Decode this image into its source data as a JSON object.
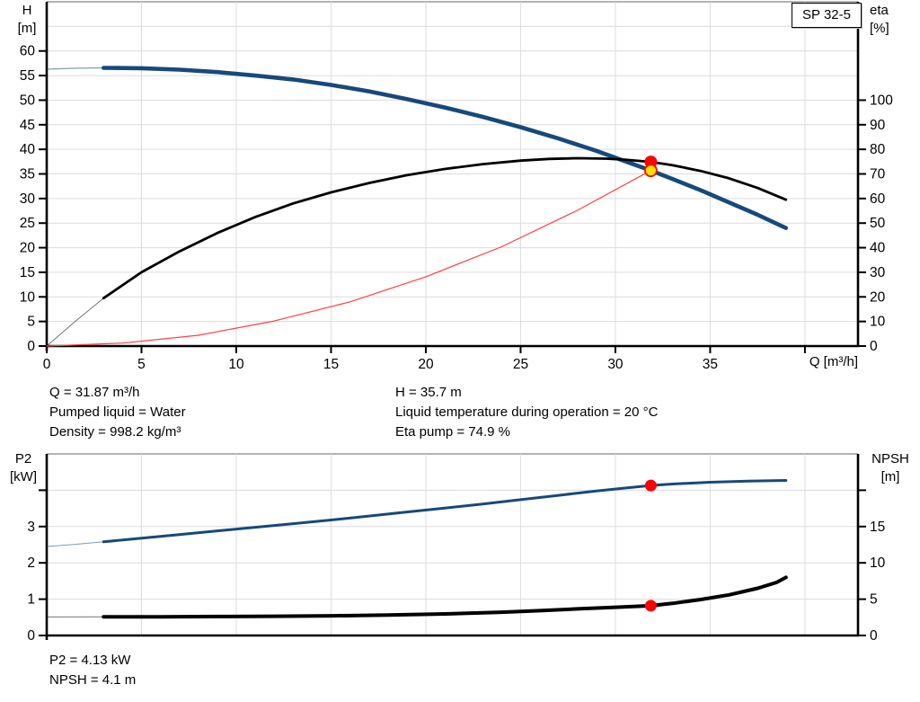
{
  "pump": {
    "model": "SP 32-5"
  },
  "summary_top": {
    "col1": [
      "Q = 31.87 m³/h",
      "Pumped liquid = Water",
      "Density = 998.2 kg/m³"
    ],
    "col2": [
      "H = 35.7 m",
      "Liquid temperature during operation = 20 °C",
      "Eta pump = 74.9 %"
    ]
  },
  "summary_bottom": {
    "lines": [
      "P2 = 4.13 kW",
      "NPSH = 4.1 m"
    ]
  },
  "colors": {
    "curve_blue": "#17497A",
    "curve_black": "#000000",
    "system_red": "#FF4040",
    "marker_red": "#FF0000",
    "marker_yellow": "#FFE000",
    "grid": "#DCDCDC",
    "border_gray": "#999999"
  },
  "chart_data": [
    {
      "type": "line",
      "id": "qh-eta",
      "badge": "SP 32-5",
      "xlabel": "Q [m³/h]",
      "ylabel_left": [
        "H",
        "[m]"
      ],
      "ylabel_right": [
        "eta",
        "[%]"
      ],
      "xlim": [
        0,
        42.8
      ],
      "ylim_left": [
        0,
        70
      ],
      "ylim_right": [
        0,
        140
      ],
      "grid": true,
      "x_ticks": [
        {
          "v": 0,
          "label": "0"
        },
        {
          "v": 5,
          "label": "5"
        },
        {
          "v": 10,
          "label": "10"
        },
        {
          "v": 15,
          "label": "15"
        },
        {
          "v": 20,
          "label": "20"
        },
        {
          "v": 25,
          "label": "25"
        },
        {
          "v": 30,
          "label": "30"
        },
        {
          "v": 35,
          "label": "35"
        },
        {
          "v": 40,
          "label": ""
        }
      ],
      "left_ticks": [
        {
          "v": 0,
          "label": "0"
        },
        {
          "v": 5,
          "label": "5"
        },
        {
          "v": 10,
          "label": "10"
        },
        {
          "v": 15,
          "label": "15"
        },
        {
          "v": 20,
          "label": "20"
        },
        {
          "v": 25,
          "label": "25"
        },
        {
          "v": 30,
          "label": "30"
        },
        {
          "v": 35,
          "label": "35"
        },
        {
          "v": 40,
          "label": "40"
        },
        {
          "v": 45,
          "label": "45"
        },
        {
          "v": 50,
          "label": "50"
        },
        {
          "v": 55,
          "label": "55"
        },
        {
          "v": 60,
          "label": "60"
        }
      ],
      "right_ticks": [
        {
          "v": 0,
          "label": "0"
        },
        {
          "v": 10,
          "label": "10"
        },
        {
          "v": 20,
          "label": "20"
        },
        {
          "v": 30,
          "label": "30"
        },
        {
          "v": 40,
          "label": "40"
        },
        {
          "v": 50,
          "label": "50"
        },
        {
          "v": 60,
          "label": "60"
        },
        {
          "v": 70,
          "label": "70"
        },
        {
          "v": 80,
          "label": "80"
        },
        {
          "v": 90,
          "label": "90"
        },
        {
          "v": 100,
          "label": "100"
        }
      ],
      "grid_x": [
        5,
        10,
        15,
        20,
        25,
        30,
        35,
        40
      ],
      "grid_left": [
        5,
        10,
        15,
        20,
        25,
        30,
        35,
        40,
        45,
        50,
        55,
        60,
        65
      ],
      "series": [
        {
          "name": "pump-head-curve",
          "axis": "left",
          "color": "#17497A",
          "thin_until": 3,
          "width": 4.6,
          "thin_width": 1.2,
          "points": [
            [
              0,
              56.3
            ],
            [
              1.5,
              56.5
            ],
            [
              3,
              56.57
            ],
            [
              5,
              56.5
            ],
            [
              7,
              56.2
            ],
            [
              9,
              55.7
            ],
            [
              11,
              55.0
            ],
            [
              13,
              54.2
            ],
            [
              15,
              53.1
            ],
            [
              17,
              51.8
            ],
            [
              19,
              50.2
            ],
            [
              21,
              48.5
            ],
            [
              23,
              46.6
            ],
            [
              25,
              44.5
            ],
            [
              27,
              42.2
            ],
            [
              29,
              39.7
            ],
            [
              30.5,
              37.6
            ],
            [
              31.87,
              35.7
            ],
            [
              33,
              34.0
            ],
            [
              34.5,
              31.7
            ],
            [
              36,
              29.2
            ],
            [
              37.5,
              26.7
            ],
            [
              39,
              24.0
            ]
          ]
        },
        {
          "name": "pump-efficiency-curve",
          "axis": "right",
          "color": "#000000",
          "thin_until": 3,
          "width": 2.8,
          "thin_width": 1,
          "points": [
            [
              0,
              0
            ],
            [
              1.5,
              10
            ],
            [
              3,
              19.5
            ],
            [
              5,
              30
            ],
            [
              7,
              38.5
            ],
            [
              9,
              46
            ],
            [
              11,
              52.5
            ],
            [
              13,
              58
            ],
            [
              15,
              62.5
            ],
            [
              17,
              66.3
            ],
            [
              19,
              69.5
            ],
            [
              21,
              72
            ],
            [
              23,
              74
            ],
            [
              25,
              75.4
            ],
            [
              26.5,
              76.1
            ],
            [
              28,
              76.4
            ],
            [
              29.5,
              76.2
            ],
            [
              30.5,
              75.8
            ],
            [
              31.87,
              74.9
            ],
            [
              33,
              73.6
            ],
            [
              34.5,
              71.2
            ],
            [
              36,
              68.2
            ],
            [
              37.5,
              64.3
            ],
            [
              39,
              59.5
            ]
          ]
        },
        {
          "name": "system-curve",
          "axis": "left",
          "color": "#FF4040",
          "thin_until": 0,
          "width": 1.2,
          "thin_width": 1.2,
          "points": [
            [
              0,
              0
            ],
            [
              4,
              0.6
            ],
            [
              8,
              2.2
            ],
            [
              12,
              5.1
            ],
            [
              16,
              9.0
            ],
            [
              20,
              14.1
            ],
            [
              24,
              20.2
            ],
            [
              28,
              27.6
            ],
            [
              31.87,
              35.7
            ]
          ]
        }
      ],
      "markers": [
        {
          "name": "duty-point-eta",
          "x": 31.87,
          "y": 74.9,
          "axis": "right",
          "fill": "#FF0000",
          "stroke": "none",
          "r": 7
        },
        {
          "name": "duty-point-head",
          "x": 31.87,
          "y": 35.7,
          "axis": "left",
          "fill": "#FFE000",
          "stroke": "#FF0000",
          "r": 6.5
        }
      ]
    },
    {
      "type": "line",
      "id": "p2-npsh",
      "xlabel": "",
      "ylabel_left": [
        "P2",
        "[kW]"
      ],
      "ylabel_right": [
        "NPSH",
        "[m]"
      ],
      "xlim": [
        0,
        42.8
      ],
      "ylim_left": [
        0,
        5
      ],
      "ylim_right": [
        0,
        25
      ],
      "grid": true,
      "x_ticks": [],
      "left_ticks": [
        {
          "v": 0,
          "label": "0"
        },
        {
          "v": 1,
          "label": "1"
        },
        {
          "v": 2,
          "label": "2"
        },
        {
          "v": 3,
          "label": "3"
        },
        {
          "v": 4,
          "label": ""
        }
      ],
      "right_ticks": [
        {
          "v": 0,
          "label": "0"
        },
        {
          "v": 5,
          "label": "5"
        },
        {
          "v": 10,
          "label": "10"
        },
        {
          "v": 15,
          "label": "15"
        },
        {
          "v": 20,
          "label": ""
        }
      ],
      "grid_x": [
        5,
        10,
        15,
        20,
        25,
        30,
        35,
        40
      ],
      "grid_left": [
        1,
        2,
        3,
        4
      ],
      "series": [
        {
          "name": "p2-power-curve",
          "axis": "left",
          "color": "#17497A",
          "thin_until": 3,
          "width": 3,
          "thin_width": 1,
          "points": [
            [
              0,
              2.45
            ],
            [
              1.5,
              2.51
            ],
            [
              3,
              2.58
            ],
            [
              5,
              2.68
            ],
            [
              7,
              2.78
            ],
            [
              9,
              2.88
            ],
            [
              11,
              2.98
            ],
            [
              13,
              3.08
            ],
            [
              15,
              3.18
            ],
            [
              17,
              3.29
            ],
            [
              19,
              3.4
            ],
            [
              21,
              3.51
            ],
            [
              23,
              3.62
            ],
            [
              25,
              3.74
            ],
            [
              27,
              3.86
            ],
            [
              29,
              3.98
            ],
            [
              30.5,
              4.06
            ],
            [
              31.87,
              4.13
            ],
            [
              33,
              4.17
            ],
            [
              35,
              4.22
            ],
            [
              37,
              4.25
            ],
            [
              39,
              4.27
            ]
          ]
        },
        {
          "name": "npsh-curve",
          "axis": "right",
          "color": "#000000",
          "thin_until": 3,
          "width": 4,
          "thin_width": 1,
          "points": [
            [
              0,
              2.55
            ],
            [
              3,
              2.56
            ],
            [
              6,
              2.58
            ],
            [
              9,
              2.61
            ],
            [
              12,
              2.65
            ],
            [
              15,
              2.71
            ],
            [
              18,
              2.81
            ],
            [
              21,
              2.97
            ],
            [
              24,
              3.2
            ],
            [
              26,
              3.42
            ],
            [
              28,
              3.66
            ],
            [
              30,
              3.88
            ],
            [
              31.87,
              4.1
            ],
            [
              33,
              4.42
            ],
            [
              34.5,
              4.95
            ],
            [
              36,
              5.6
            ],
            [
              37.5,
              6.5
            ],
            [
              38.5,
              7.3
            ],
            [
              39,
              8.0
            ]
          ]
        }
      ],
      "markers": [
        {
          "name": "duty-point-p2",
          "x": 31.87,
          "y": 4.13,
          "axis": "left",
          "fill": "#FF0000",
          "stroke": "none",
          "r": 6.5
        },
        {
          "name": "duty-point-npsh",
          "x": 31.87,
          "y": 4.1,
          "axis": "right",
          "fill": "#FF0000",
          "stroke": "none",
          "r": 6.5
        }
      ]
    }
  ]
}
